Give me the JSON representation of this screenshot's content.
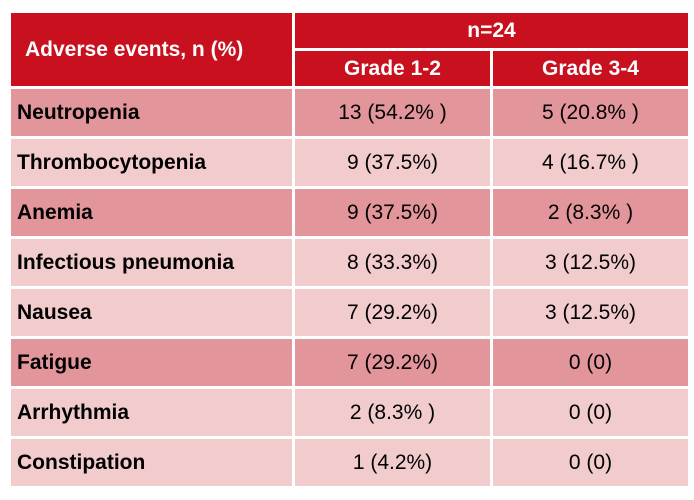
{
  "table": {
    "header": {
      "row_label": "Adverse events,  n (%)",
      "group_label": "n=24",
      "columns": [
        "Grade 1-2",
        "Grade 3-4"
      ]
    },
    "rows": [
      {
        "event": "Neutropenia",
        "grade_1_2": "13 (54.2% )",
        "grade_3_4": "5 (20.8% )"
      },
      {
        "event": "Thrombocytopenia",
        "grade_1_2": "9 (37.5%)",
        "grade_3_4": "4 (16.7% )"
      },
      {
        "event": "Anemia",
        "grade_1_2": "9 (37.5%)",
        "grade_3_4": "2 (8.3% )"
      },
      {
        "event": "Infectious pneumonia",
        "grade_1_2": "8 (33.3%)",
        "grade_3_4": "3 (12.5%)"
      },
      {
        "event": "Nausea",
        "grade_1_2": "7 (29.2%)",
        "grade_3_4": "3 (12.5%)"
      },
      {
        "event": "Fatigue",
        "grade_1_2": "7 (29.2%)",
        "grade_3_4": "0 (0)"
      },
      {
        "event": "Arrhythmia",
        "grade_1_2": "2 (8.3% )",
        "grade_3_4": "0 (0)"
      },
      {
        "event": "Constipation",
        "grade_1_2": "1 (4.2%)",
        "grade_3_4": "0 (0)"
      }
    ]
  },
  "colors": {
    "header": "#c8101e",
    "row_dark": "#e3959c",
    "row_light": "#f2cbcd"
  }
}
